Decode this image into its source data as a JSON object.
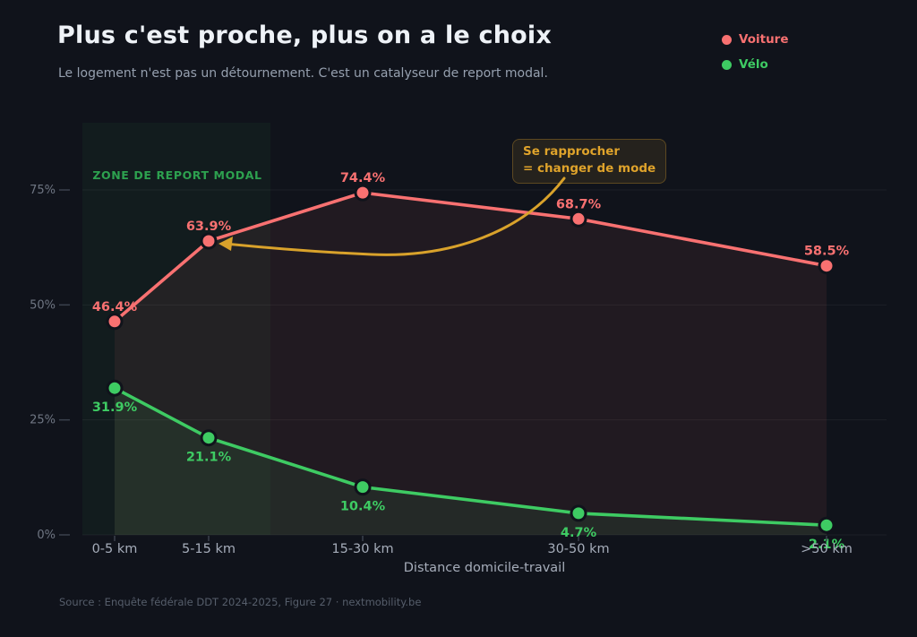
{
  "header": {
    "title": "Plus c'est proche, plus on a le choix",
    "subtitle": "Le logement n'est pas un détournement. C'est un catalyseur de report modal."
  },
  "legend": {
    "items": [
      {
        "label": "Voiture",
        "color": "#f87171"
      },
      {
        "label": "Vélo",
        "color": "#3ecb63"
      }
    ]
  },
  "zone": {
    "label": "ZONE DE REPORT MODAL",
    "color": "#2da14f"
  },
  "annotation": {
    "line1": "Se rapprocher",
    "line2": "= changer de mode",
    "color": "#dfa32b"
  },
  "axes": {
    "xlabel": "Distance domicile-travail",
    "yticks_text": [
      "0%",
      "25%",
      "50%",
      "75%"
    ]
  },
  "source": "Source : Enquête fédérale DDT 2024-2025, Figure 27 · nextmobility.be",
  "chart_data": {
    "type": "line",
    "title": "Plus c'est proche, plus on a le choix",
    "subtitle": "Le logement n'est pas un détournement. C'est un catalyseur de report modal.",
    "categories": [
      "0-5 km",
      "5-15 km",
      "15-30 km",
      "30-50 km",
      ">50 km"
    ],
    "series": [
      {
        "name": "Voiture",
        "color": "#f87171",
        "values": [
          46.4,
          63.9,
          74.4,
          68.7,
          58.5
        ],
        "labels": "above",
        "area_fill": "rgba(248,113,113,0.08)"
      },
      {
        "name": "Vélo",
        "color": "#3ecb63",
        "values": [
          31.9,
          21.1,
          10.4,
          4.7,
          2.1
        ],
        "labels": "below",
        "area_fill": "rgba(62,203,99,0.09)"
      }
    ],
    "xlabel": "Distance domicile-travail",
    "ylabel": "",
    "ylim": [
      0,
      90
    ],
    "yticks": [
      0,
      25,
      50,
      75
    ],
    "grid": true,
    "legend_position": "top-right",
    "highlight_zone": {
      "label": "ZONE DE REPORT MODAL",
      "covers": "0-15 km"
    },
    "annotation": {
      "text": "Se rapprocher = changer de mode",
      "points_to": "Voiture 63.9% @ 5-15 km"
    }
  }
}
